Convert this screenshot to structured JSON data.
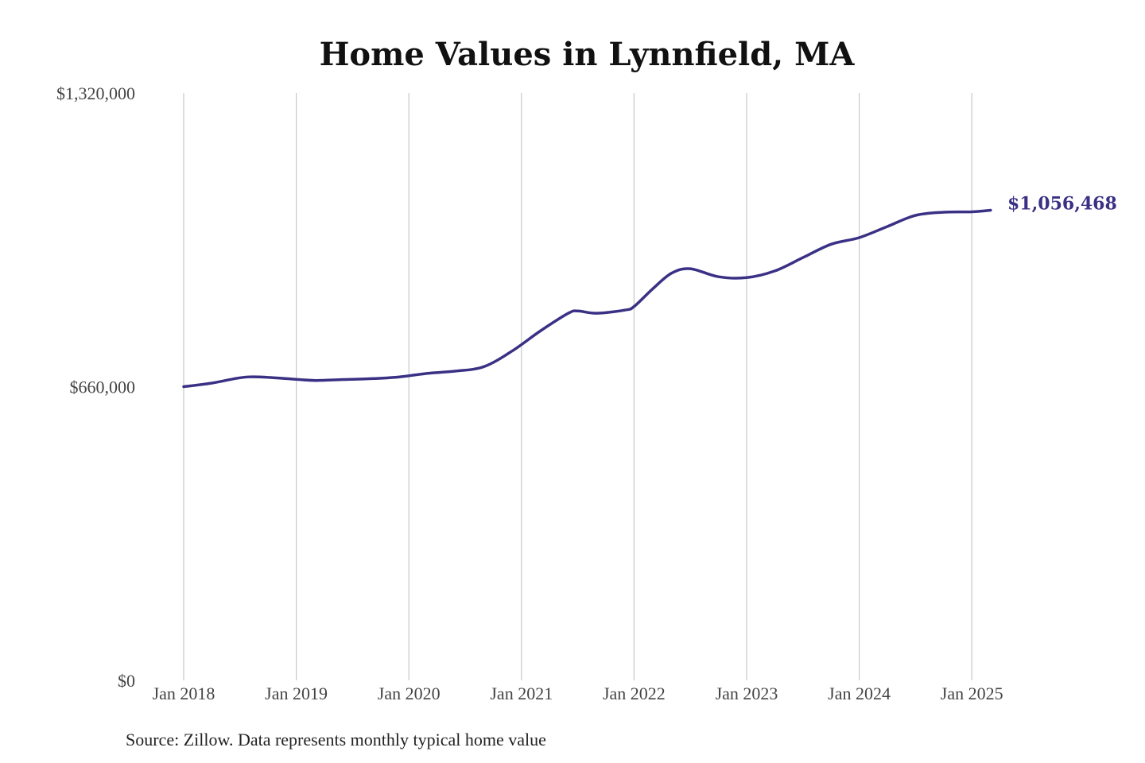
{
  "colors": {
    "line": "#3a3185",
    "grid": "#c8c8c8",
    "text": "#444444"
  },
  "source_note": "Source: Zillow. Data represents monthly typical home value",
  "chart_data": {
    "type": "line",
    "title": "Home Values in Lynnfield, MA",
    "xlabel": "",
    "ylabel": "",
    "grid": "vertical",
    "ylim": [
      0,
      1320000
    ],
    "yticks": [
      {
        "value": 0,
        "label": "$0"
      },
      {
        "value": 660000,
        "label": "$660,000"
      },
      {
        "value": 1320000,
        "label": "$1,320,000"
      }
    ],
    "xticks": [
      {
        "value": "2018-01",
        "label": "Jan 2018"
      },
      {
        "value": "2019-01",
        "label": "Jan 2019"
      },
      {
        "value": "2020-01",
        "label": "Jan 2020"
      },
      {
        "value": "2021-01",
        "label": "Jan 2021"
      },
      {
        "value": "2022-01",
        "label": "Jan 2022"
      },
      {
        "value": "2023-01",
        "label": "Jan 2023"
      },
      {
        "value": "2024-01",
        "label": "Jan 2024"
      },
      {
        "value": "2025-01",
        "label": "Jan 2025"
      }
    ],
    "end_label": "$1,056,468",
    "series": [
      {
        "x": [
          "2018-01",
          "2018-04",
          "2018-07",
          "2018-09",
          "2018-12",
          "2019-03",
          "2019-06",
          "2019-09",
          "2019-12",
          "2020-03",
          "2020-06",
          "2020-09",
          "2020-12",
          "2021-03",
          "2021-06",
          "2021-07",
          "2021-09",
          "2021-12",
          "2022-01",
          "2022-03",
          "2022-05",
          "2022-07",
          "2022-10",
          "2023-01",
          "2023-04",
          "2023-07",
          "2023-10",
          "2024-01",
          "2024-04",
          "2024-07",
          "2024-10",
          "2025-01",
          "2025-03"
        ],
        "y": [
          660000,
          668000,
          680000,
          682000,
          678000,
          674000,
          676000,
          678000,
          682000,
          690000,
          695000,
          705000,
          740000,
          785000,
          825000,
          830000,
          825000,
          832000,
          840000,
          880000,
          915000,
          925000,
          907000,
          905000,
          920000,
          950000,
          980000,
          995000,
          1020000,
          1045000,
          1052000,
          1053000,
          1056468
        ]
      }
    ]
  }
}
